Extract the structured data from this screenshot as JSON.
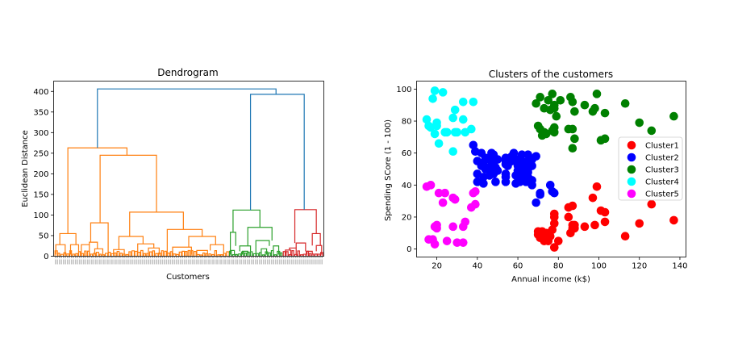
{
  "chart_data": [
    {
      "type": "dendrogram",
      "title": "Dendrogram",
      "xlabel": "Customers",
      "ylabel": "Euclidean Distance",
      "ylim": [
        0,
        425
      ],
      "yticks": [
        0,
        50,
        100,
        150,
        200,
        250,
        300,
        350,
        400
      ],
      "leaf_count": 200,
      "colors": {
        "cluster_a": "#ff7f0e",
        "cluster_b": "#2ca02c",
        "cluster_c": "#d62728",
        "above_threshold": "#1f77b4"
      },
      "merges_above_threshold": [
        {
          "height": 406,
          "left_x": 0.16,
          "right_x": 0.825
        },
        {
          "height": 393,
          "left_x": 0.73,
          "right_x": 0.93
        },
        {
          "height": 263,
          "left_x": 0.05,
          "right_x": 0.27
        }
      ],
      "clusters": [
        {
          "color_key": "cluster_a",
          "x_range": [
            0.0,
            0.65
          ],
          "top_merges": [
            {
              "height": 263,
              "left_x": 0.05,
              "right_x": 0.27
            },
            {
              "height": 245,
              "left_x": 0.17,
              "right_x": 0.38
            },
            {
              "height": 107,
              "left_x": 0.28,
              "right_x": 0.48
            },
            {
              "height": 81,
              "left_x": 0.135,
              "right_x": 0.2
            },
            {
              "height": 65,
              "left_x": 0.42,
              "right_x": 0.55
            },
            {
              "height": 55,
              "left_x": 0.02,
              "right_x": 0.08
            },
            {
              "height": 48,
              "left_x": 0.24,
              "right_x": 0.33
            },
            {
              "height": 48,
              "left_x": 0.5,
              "right_x": 0.6
            },
            {
              "height": 34,
              "left_x": 0.13,
              "right_x": 0.16
            },
            {
              "height": 30,
              "left_x": 0.31,
              "right_x": 0.37
            },
            {
              "height": 28,
              "left_x": 0.06,
              "right_x": 0.09
            },
            {
              "height": 28,
              "left_x": 0.1,
              "right_x": 0.13
            },
            {
              "height": 28,
              "left_x": 0.58,
              "right_x": 0.63
            },
            {
              "height": 28,
              "left_x": 0.005,
              "right_x": 0.04
            },
            {
              "height": 22,
              "left_x": 0.44,
              "right_x": 0.51
            },
            {
              "height": 20,
              "left_x": 0.35,
              "right_x": 0.39
            },
            {
              "height": 18,
              "left_x": 0.15,
              "right_x": 0.18
            },
            {
              "height": 16,
              "left_x": 0.22,
              "right_x": 0.26
            },
            {
              "height": 14,
              "left_x": 0.53,
              "right_x": 0.57
            }
          ]
        },
        {
          "color_key": "cluster_b",
          "x_range": [
            0.65,
            0.85
          ],
          "top_merges": [
            {
              "height": 112,
              "left_x": 0.665,
              "right_x": 0.765
            },
            {
              "height": 70,
              "left_x": 0.72,
              "right_x": 0.81
            },
            {
              "height": 58,
              "left_x": 0.655,
              "right_x": 0.675
            },
            {
              "height": 38,
              "left_x": 0.75,
              "right_x": 0.8
            },
            {
              "height": 25,
              "left_x": 0.69,
              "right_x": 0.73
            },
            {
              "height": 25,
              "left_x": 0.815,
              "right_x": 0.835
            },
            {
              "height": 18,
              "left_x": 0.77,
              "right_x": 0.79
            },
            {
              "height": 14,
              "left_x": 0.655,
              "right_x": 0.67
            },
            {
              "height": 12,
              "left_x": 0.7,
              "right_x": 0.72
            }
          ]
        },
        {
          "color_key": "cluster_c",
          "x_range": [
            0.85,
            1.0
          ],
          "top_merges": [
            {
              "height": 113,
              "left_x": 0.895,
              "right_x": 0.975
            },
            {
              "height": 55,
              "left_x": 0.96,
              "right_x": 0.99
            },
            {
              "height": 32,
              "left_x": 0.9,
              "right_x": 0.935
            },
            {
              "height": 26,
              "left_x": 0.975,
              "right_x": 0.995
            },
            {
              "height": 20,
              "left_x": 0.875,
              "right_x": 0.9
            },
            {
              "height": 15,
              "left_x": 0.86,
              "right_x": 0.88
            },
            {
              "height": 12,
              "left_x": 0.94,
              "right_x": 0.96
            }
          ]
        }
      ]
    },
    {
      "type": "scatter",
      "title": "Clusters of the customers",
      "xlabel": "Annual income (k$)",
      "ylabel": "Spending SCore (1 - 100)",
      "xlim": [
        10,
        143
      ],
      "ylim": [
        -5,
        105
      ],
      "xticks": [
        20,
        40,
        60,
        80,
        100,
        120,
        140
      ],
      "yticks": [
        0,
        20,
        40,
        60,
        80,
        100
      ],
      "legend_position": "center-right",
      "series": [
        {
          "name": "Cluster1",
          "color": "#ff0000",
          "points": [
            [
              70,
              11
            ],
            [
              70,
              9
            ],
            [
              71,
              10
            ],
            [
              71,
              7
            ],
            [
              72,
              11
            ],
            [
              73,
              5
            ],
            [
              73,
              8
            ],
            [
              74,
              10
            ],
            [
              75,
              5
            ],
            [
              75,
              6
            ],
            [
              76,
              8
            ],
            [
              77,
              12
            ],
            [
              78,
              1
            ],
            [
              78,
              16
            ],
            [
              78,
              22
            ],
            [
              78,
              20
            ],
            [
              80,
              5
            ],
            [
              85,
              20
            ],
            [
              85,
              26
            ],
            [
              86,
              10
            ],
            [
              87,
              13
            ],
            [
              87,
              27
            ],
            [
              87,
              15
            ],
            [
              88,
              13
            ],
            [
              88,
              15
            ],
            [
              93,
              14
            ],
            [
              97,
              32
            ],
            [
              98,
              15
            ],
            [
              99,
              39
            ],
            [
              101,
              24
            ],
            [
              103,
              17
            ],
            [
              103,
              23
            ],
            [
              113,
              8
            ],
            [
              120,
              16
            ],
            [
              126,
              28
            ],
            [
              137,
              18
            ]
          ]
        },
        {
          "name": "Cluster2",
          "color": "#0000ff",
          "points": [
            [
              38,
              65
            ],
            [
              39,
              61
            ],
            [
              40,
              55
            ],
            [
              40,
              47
            ],
            [
              40,
              42
            ],
            [
              42,
              52
            ],
            [
              42,
              60
            ],
            [
              43,
              54
            ],
            [
              43,
              45
            ],
            [
              43,
              41
            ],
            [
              44,
              50
            ],
            [
              44,
              57
            ],
            [
              46,
              46
            ],
            [
              46,
              51
            ],
            [
              46,
              56
            ],
            [
              47,
              60
            ],
            [
              47,
              52
            ],
            [
              48,
              47
            ],
            [
              48,
              50
            ],
            [
              48,
              55
            ],
            [
              48,
              59
            ],
            [
              48,
              53
            ],
            [
              49,
              51
            ],
            [
              49,
              42
            ],
            [
              50,
              56
            ],
            [
              50,
              49
            ],
            [
              54,
              47
            ],
            [
              54,
              55
            ],
            [
              54,
              53
            ],
            [
              54,
              45
            ],
            [
              54,
              42
            ],
            [
              54,
              57
            ],
            [
              55,
              52
            ],
            [
              57,
              58
            ],
            [
              57,
              55
            ],
            [
              58,
              60
            ],
            [
              59,
              41
            ],
            [
              59,
              46
            ],
            [
              60,
              55
            ],
            [
              60,
              49
            ],
            [
              60,
              52
            ],
            [
              60,
              49
            ],
            [
              60,
              56
            ],
            [
              61,
              42
            ],
            [
              62,
              59
            ],
            [
              62,
              43
            ],
            [
              62,
              48
            ],
            [
              62,
              52
            ],
            [
              62,
              55
            ],
            [
              63,
              54
            ],
            [
              63,
              49
            ],
            [
              63,
              50
            ],
            [
              63,
              46
            ],
            [
              63,
              43
            ],
            [
              63,
              48
            ],
            [
              64,
              52
            ],
            [
              64,
              42
            ],
            [
              65,
              59
            ],
            [
              65,
              48
            ],
            [
              65,
              55
            ],
            [
              65,
              50
            ],
            [
              65,
              45
            ],
            [
              67,
              56
            ],
            [
              67,
              52
            ],
            [
              67,
              43
            ],
            [
              67,
              40
            ],
            [
              69,
              58
            ],
            [
              69,
              29
            ],
            [
              71,
              35
            ],
            [
              71,
              34
            ],
            [
              76,
              40
            ],
            [
              77,
              36
            ],
            [
              78,
              35
            ]
          ]
        },
        {
          "name": "Cluster3",
          "color": "#008000",
          "points": [
            [
              69,
              91
            ],
            [
              70,
              77
            ],
            [
              71,
              95
            ],
            [
              71,
              75
            ],
            [
              72,
              71
            ],
            [
              73,
              88
            ],
            [
              73,
              73
            ],
            [
              74,
              72
            ],
            [
              75,
              93
            ],
            [
              76,
              87
            ],
            [
              77,
              97
            ],
            [
              77,
              74
            ],
            [
              78,
              90
            ],
            [
              78,
              88
            ],
            [
              78,
              76
            ],
            [
              78,
              73
            ],
            [
              79,
              83
            ],
            [
              81,
              93
            ],
            [
              85,
              75
            ],
            [
              86,
              95
            ],
            [
              87,
              63
            ],
            [
              87,
              75
            ],
            [
              87,
              92
            ],
            [
              88,
              86
            ],
            [
              88,
              69
            ],
            [
              93,
              90
            ],
            [
              97,
              86
            ],
            [
              98,
              88
            ],
            [
              99,
              97
            ],
            [
              101,
              68
            ],
            [
              103,
              85
            ],
            [
              103,
              69
            ],
            [
              113,
              91
            ],
            [
              120,
              79
            ],
            [
              126,
              74
            ],
            [
              137,
              83
            ]
          ]
        },
        {
          "name": "Cluster4",
          "color": "#00ffff",
          "points": [
            [
              15,
              81
            ],
            [
              16,
              77
            ],
            [
              17,
              76
            ],
            [
              18,
              94
            ],
            [
              19,
              72
            ],
            [
              19,
              99
            ],
            [
              20,
              77
            ],
            [
              20,
              79
            ],
            [
              21,
              66
            ],
            [
              23,
              98
            ],
            [
              24,
              73
            ],
            [
              25,
              73
            ],
            [
              28,
              82
            ],
            [
              28,
              61
            ],
            [
              29,
              87
            ],
            [
              29,
              73
            ],
            [
              30,
              73
            ],
            [
              33,
              92
            ],
            [
              33,
              81
            ],
            [
              34,
              73
            ],
            [
              37,
              75
            ],
            [
              38,
              92
            ]
          ]
        },
        {
          "name": "Cluster5",
          "color": "#ff00ff",
          "points": [
            [
              15,
              39
            ],
            [
              16,
              6
            ],
            [
              17,
              40
            ],
            [
              18,
              6
            ],
            [
              19,
              3
            ],
            [
              19,
              14
            ],
            [
              20,
              15
            ],
            [
              20,
              13
            ],
            [
              21,
              35
            ],
            [
              23,
              29
            ],
            [
              24,
              35
            ],
            [
              25,
              5
            ],
            [
              28,
              14
            ],
            [
              28,
              32
            ],
            [
              29,
              31
            ],
            [
              30,
              4
            ],
            [
              33,
              4
            ],
            [
              33,
              14
            ],
            [
              34,
              17
            ],
            [
              37,
              26
            ],
            [
              38,
              35
            ],
            [
              39,
              36
            ],
            [
              39,
              28
            ]
          ]
        }
      ]
    }
  ]
}
